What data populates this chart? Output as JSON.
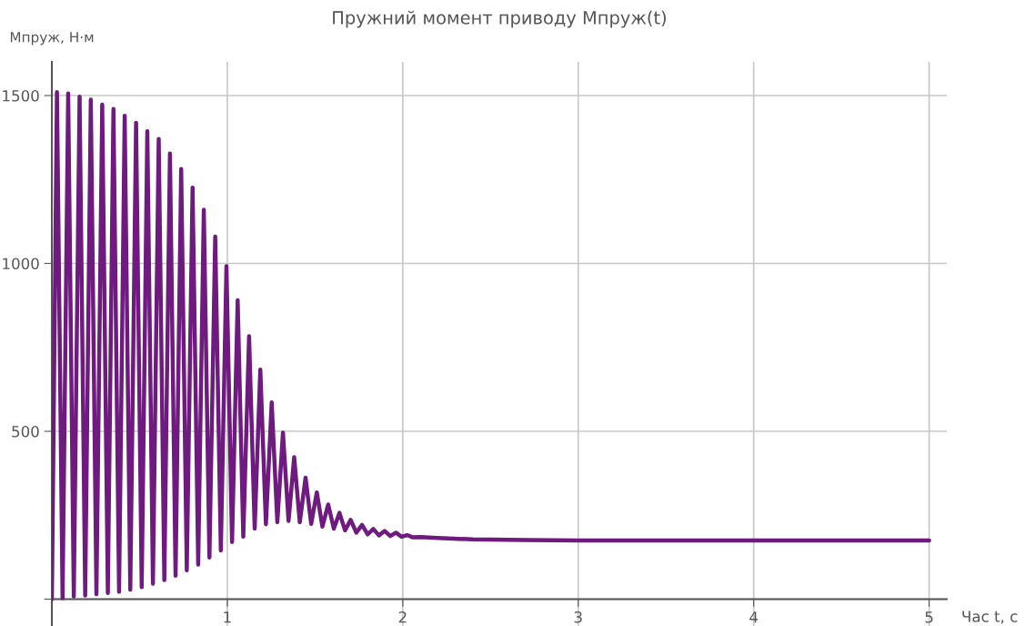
{
  "chart_data": {
    "type": "line",
    "title": "Пружний момент приводу Мпруж(t)",
    "xlabel": "Час t, с",
    "ylabel": "Мпруж, Н·м",
    "x": [
      0,
      0.029,
      0.061,
      0.093,
      0.125,
      0.158,
      0.19,
      0.222,
      0.254,
      0.287,
      0.319,
      0.351,
      0.383,
      0.415,
      0.447,
      0.48,
      0.512,
      0.544,
      0.576,
      0.609,
      0.641,
      0.673,
      0.705,
      0.737,
      0.769,
      0.802,
      0.834,
      0.866,
      0.898,
      0.931,
      0.963,
      0.995,
      1.027,
      1.059,
      1.091,
      1.124,
      1.156,
      1.188,
      1.22,
      1.253,
      1.285,
      1.317,
      1.349,
      1.381,
      1.413,
      1.446,
      1.478,
      1.51,
      1.542,
      1.575,
      1.607,
      1.639,
      1.671,
      1.703,
      1.735,
      1.768,
      1.8,
      1.832,
      1.864,
      1.897,
      1.929,
      1.961,
      1.993,
      2.025,
      2.057,
      2.1,
      2.2,
      2.4,
      2.7,
      3,
      4,
      5
    ],
    "series": [
      {
        "color": "#6e1a7e",
        "values": [
          0,
          1510,
          3,
          1506,
          8,
          1497,
          11,
          1488,
          15,
          1473,
          18,
          1460,
          22,
          1440,
          28,
          1419,
          36,
          1394,
          46,
          1371,
          57,
          1327,
          70,
          1281,
          86,
          1226,
          103,
          1160,
          124,
          1080,
          145,
          992,
          170,
          890,
          186,
          783,
          210,
          684,
          223,
          586,
          229,
          496,
          233,
          423,
          229,
          362,
          224,
          318,
          216,
          282,
          210,
          257,
          205,
          236,
          198,
          221,
          193,
          209,
          190,
          203,
          188,
          198,
          186,
          191,
          184,
          185,
          182,
          178,
          176,
          175,
          175,
          175
        ]
      }
    ],
    "xlim": [
      0,
      5.1
    ],
    "ylim": [
      -80,
      1600
    ],
    "xticks": [
      {
        "value": 0,
        "label": null
      },
      1,
      2,
      3,
      4,
      5
    ],
    "yticks": [
      {
        "value": 0,
        "label": null
      },
      500,
      1000,
      1500
    ],
    "grid": true,
    "line_style": "solid",
    "marker": "none"
  }
}
